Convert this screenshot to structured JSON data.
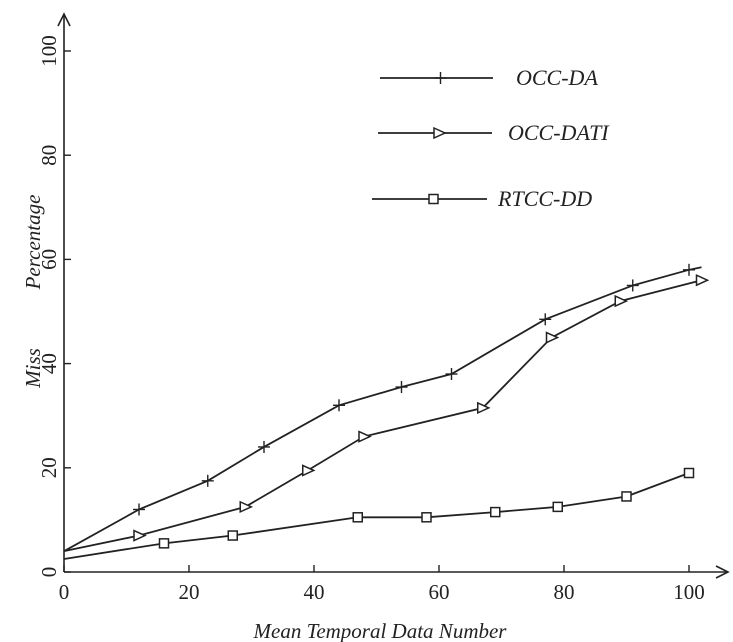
{
  "chart_data": {
    "type": "line",
    "title": "",
    "xlabel": "Mean Temporal Data Number",
    "ylabel": [
      "Miss",
      "Percentage"
    ],
    "xlim": [
      0,
      100
    ],
    "ylim": [
      0,
      100
    ],
    "x_ticks": [
      0,
      20,
      40,
      60,
      80,
      100
    ],
    "y_ticks": [
      0,
      20,
      40,
      60,
      80,
      100
    ],
    "grid": false,
    "legend_position": "top-right",
    "series": [
      {
        "name": "OCC-DA",
        "marker": "plus",
        "points": [
          [
            0,
            4
          ],
          [
            12,
            12
          ],
          [
            23,
            17.5
          ],
          [
            32,
            24
          ],
          [
            44,
            32
          ],
          [
            54,
            35.5
          ],
          [
            62,
            38
          ],
          [
            77,
            48.5
          ],
          [
            91,
            55
          ],
          [
            100,
            58
          ],
          [
            102,
            58.5
          ]
        ],
        "marker_points": [
          [
            12,
            12
          ],
          [
            23,
            17.5
          ],
          [
            32,
            24
          ],
          [
            44,
            32
          ],
          [
            54,
            35.5
          ],
          [
            62,
            38
          ],
          [
            77,
            48.5
          ],
          [
            91,
            55
          ],
          [
            100,
            58
          ]
        ]
      },
      {
        "name": "OCC-DATI",
        "marker": "triangle-right",
        "points": [
          [
            0,
            4
          ],
          [
            12,
            7
          ],
          [
            29,
            12.5
          ],
          [
            39,
            19.5
          ],
          [
            48,
            26
          ],
          [
            67,
            31.5
          ],
          [
            78,
            45
          ],
          [
            89,
            52
          ],
          [
            102,
            56
          ]
        ],
        "marker_points": [
          [
            12,
            7
          ],
          [
            29,
            12.5
          ],
          [
            39,
            19.5
          ],
          [
            48,
            26
          ],
          [
            67,
            31.5
          ],
          [
            78,
            45
          ],
          [
            89,
            52
          ],
          [
            102,
            56
          ]
        ]
      },
      {
        "name": "RTCC-DD",
        "marker": "square",
        "points": [
          [
            0,
            2.5
          ],
          [
            16,
            5.5
          ],
          [
            27,
            7
          ],
          [
            47,
            10.5
          ],
          [
            58,
            10.5
          ],
          [
            69,
            11.5
          ],
          [
            79,
            12.5
          ],
          [
            90,
            14.5
          ],
          [
            100,
            19
          ]
        ],
        "marker_points": [
          [
            16,
            5.5
          ],
          [
            27,
            7
          ],
          [
            47,
            10.5
          ],
          [
            58,
            10.5
          ],
          [
            69,
            11.5
          ],
          [
            79,
            12.5
          ],
          [
            90,
            14.5
          ],
          [
            100,
            19
          ]
        ]
      }
    ]
  }
}
